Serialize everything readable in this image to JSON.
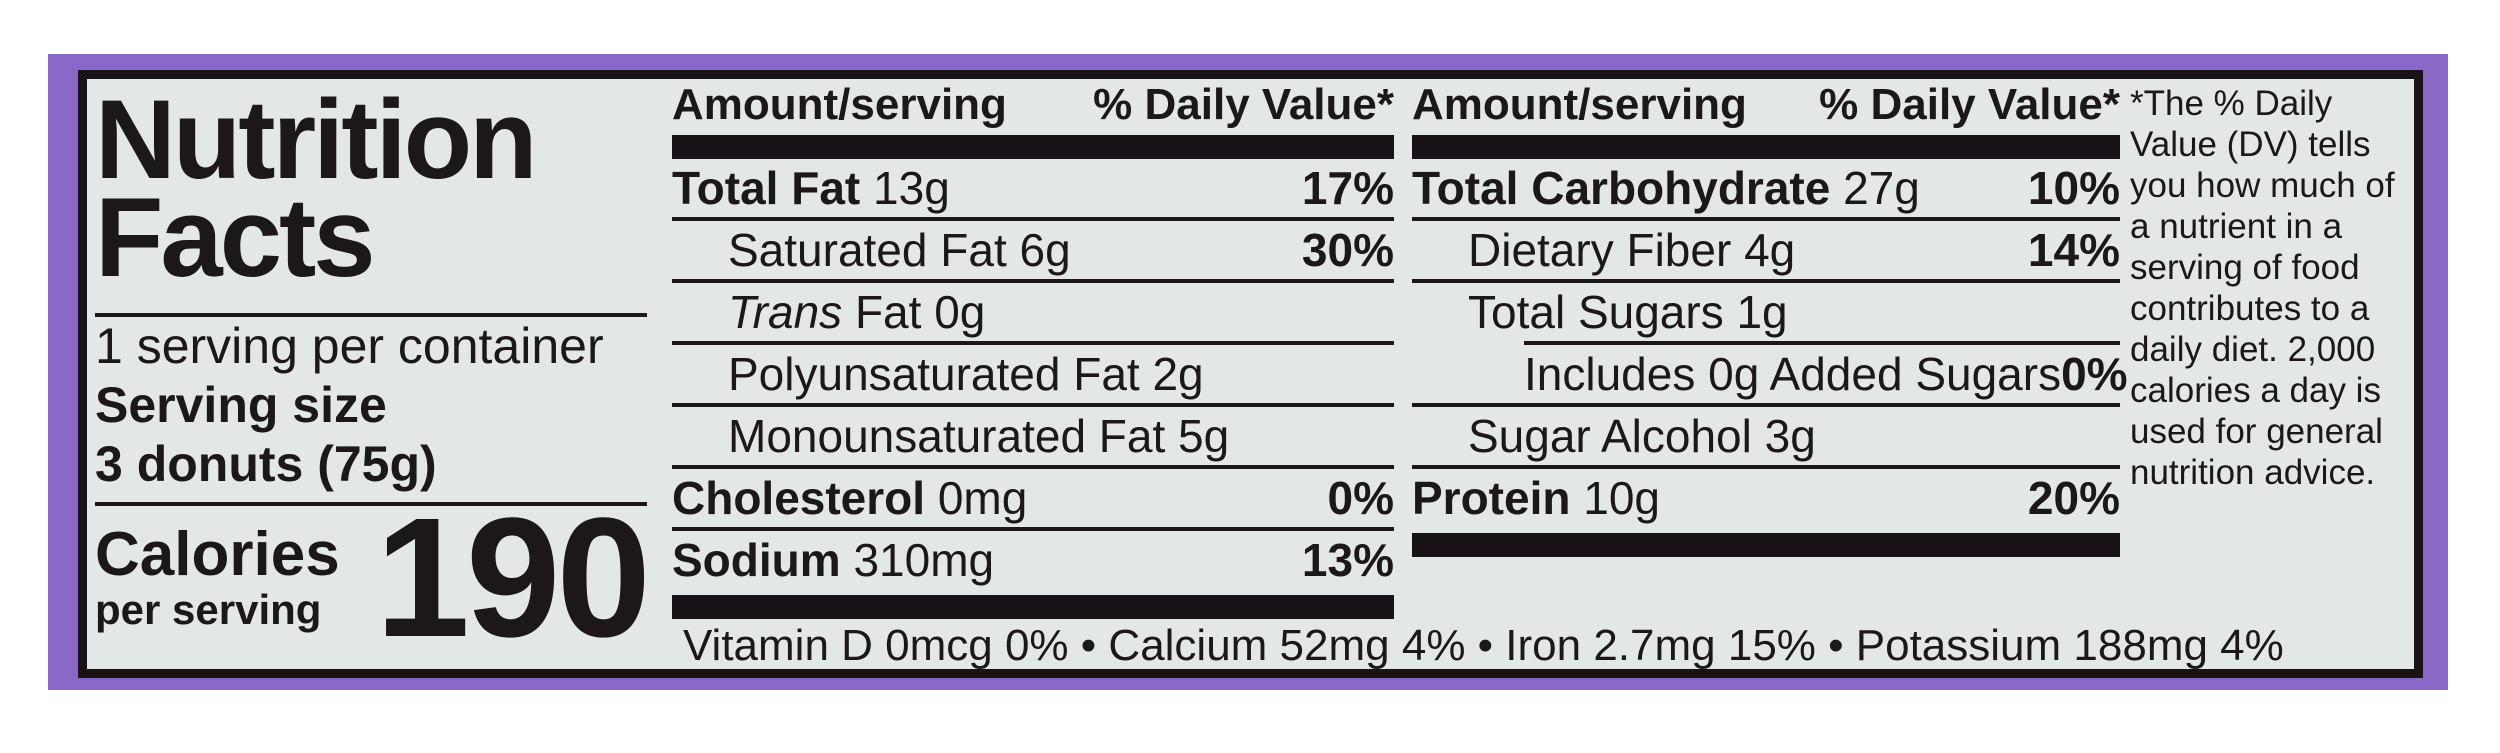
{
  "colors": {
    "package": "#8a68c8",
    "label_bg": "#e3e7e8",
    "label_border": "#171317",
    "text": "#1b171b"
  },
  "label": {
    "title_line1": "Nutrition",
    "title_line2": "Facts",
    "servings_per_container": "1 serving per container",
    "serving_size_label": "Serving size",
    "serving_size_value": "3 donuts (75g)",
    "calories_label": "Calories",
    "calories_sub_label": "per serving",
    "calories_value": "190",
    "header": {
      "amount": "Amount/serving",
      "dv": "% Daily Value*"
    },
    "columns": [
      {
        "rows": [
          {
            "seg": [
              {
                "t": "Total Fat",
                "b": 1
              },
              {
                "t": " 13g"
              }
            ],
            "dv": "17%"
          },
          {
            "seg": [
              {
                "t": "Saturated Fat 6g"
              }
            ],
            "dv": "30%",
            "ind": 1
          },
          {
            "seg": [
              {
                "t": "Trans",
                "i": 1
              },
              {
                "t": " Fat 0g"
              }
            ],
            "ind": 1
          },
          {
            "seg": [
              {
                "t": "Polyunsaturated Fat 2g"
              }
            ],
            "ind": 1
          },
          {
            "seg": [
              {
                "t": "Monounsaturated Fat 5g"
              }
            ],
            "ind": 1
          },
          {
            "seg": [
              {
                "t": "Cholesterol",
                "b": 1
              },
              {
                "t": " 0mg"
              }
            ],
            "dv": "0%"
          },
          {
            "seg": [
              {
                "t": "Sodium",
                "b": 1
              },
              {
                "t": " 310mg"
              }
            ],
            "dv": "13%"
          }
        ]
      },
      {
        "rows": [
          {
            "seg": [
              {
                "t": "Total Carbohydrate",
                "b": 1
              },
              {
                "t": " 27g"
              }
            ],
            "dv": "10%"
          },
          {
            "seg": [
              {
                "t": "Dietary Fiber 4g"
              }
            ],
            "dv": "14%",
            "ind": 1
          },
          {
            "seg": [
              {
                "t": "Total Sugars 1g"
              }
            ],
            "ind": 1,
            "divider_indent": 112
          },
          {
            "seg": [
              {
                "t": "Includes 0g Added Sugars"
              }
            ],
            "dv": "0%",
            "ind": 2
          },
          {
            "seg": [
              {
                "t": "Sugar Alcohol 3g"
              }
            ],
            "ind": 1
          },
          {
            "seg": [
              {
                "t": "Protein",
                "b": 1
              },
              {
                "t": " 10g"
              }
            ],
            "dv": "20%"
          }
        ]
      }
    ],
    "micronutrients": "Vitamin D 0mcg 0% • Calcium 52mg 4% • Iron 2.7mg 15% • Potassium 188mg 4%",
    "footnote": "*The % Daily Value (DV) tells you how much of a nutrient in a serving of food contributes to a daily diet. 2,000 calories a day is used for general nutrition advice."
  }
}
